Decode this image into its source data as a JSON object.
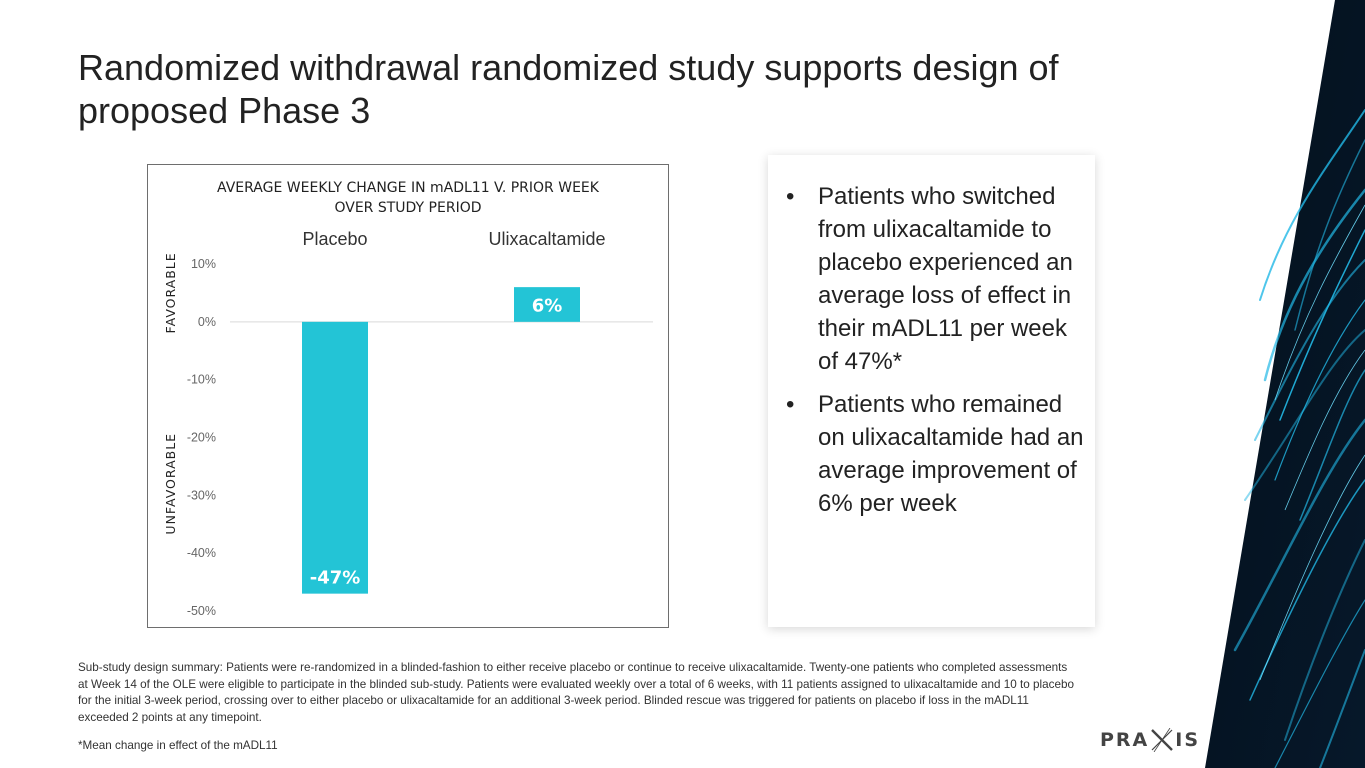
{
  "title": {
    "line1": "Randomized withdrawal randomized study supports design of",
    "line2": "proposed Phase 3"
  },
  "chart_data": {
    "type": "bar",
    "title_line1": "AVERAGE WEEKLY CHANGE IN mADL11 V. PRIOR WEEK",
    "title_line2": "OVER STUDY PERIOD",
    "categories": [
      "Placebo",
      "Ulixacaltamide"
    ],
    "values": [
      -47,
      6
    ],
    "data_labels": [
      "-47%",
      "6%"
    ],
    "y_ticks": [
      10,
      0,
      -10,
      -20,
      -30,
      -40,
      -50
    ],
    "y_tick_labels": [
      "10%",
      "0%",
      "-10%",
      "-20%",
      "-30%",
      "-40%",
      "-50%"
    ],
    "ylim": [
      -50,
      10
    ],
    "y_annotation_top": "FAVORABLE",
    "y_annotation_bottom": "UNFAVORABLE",
    "bar_color": "#23c4d6",
    "zero_line_color": "#d9d9d9"
  },
  "bullets": [
    "Patients who switched from ulixacaltamide to placebo experienced an average loss of effect in their mADL11 per week of 47%*",
    "Patients who remained on ulixacaltamide had an average improvement of 6% per week"
  ],
  "bullet_symbol": "•",
  "footnote": "Sub-study design summary: Patients were re-randomized in a blinded-fashion to either receive placebo or continue to receive ulixacaltamide.  Twenty-one patients who completed assessments at Week 14 of the OLE were eligible to participate in the blinded sub-study. Patients were evaluated weekly over a total of 6 weeks, with 11 patients assigned to ulixacaltamide and 10 to placebo for the initial 3-week period, crossing over to either placebo or ulixacaltamide for an additional 3-week period. Blinded rescue was triggered for patients on placebo if loss in the mADL11 exceeded 2 points at any timepoint.",
  "footnote_star": "*Mean change in effect of the mADL11",
  "logo": {
    "left": "PRA",
    "right": "IS"
  },
  "icons": {
    "logo_mark": "praxis-x-mark-icon",
    "decoration": "fiber-optic-image"
  }
}
